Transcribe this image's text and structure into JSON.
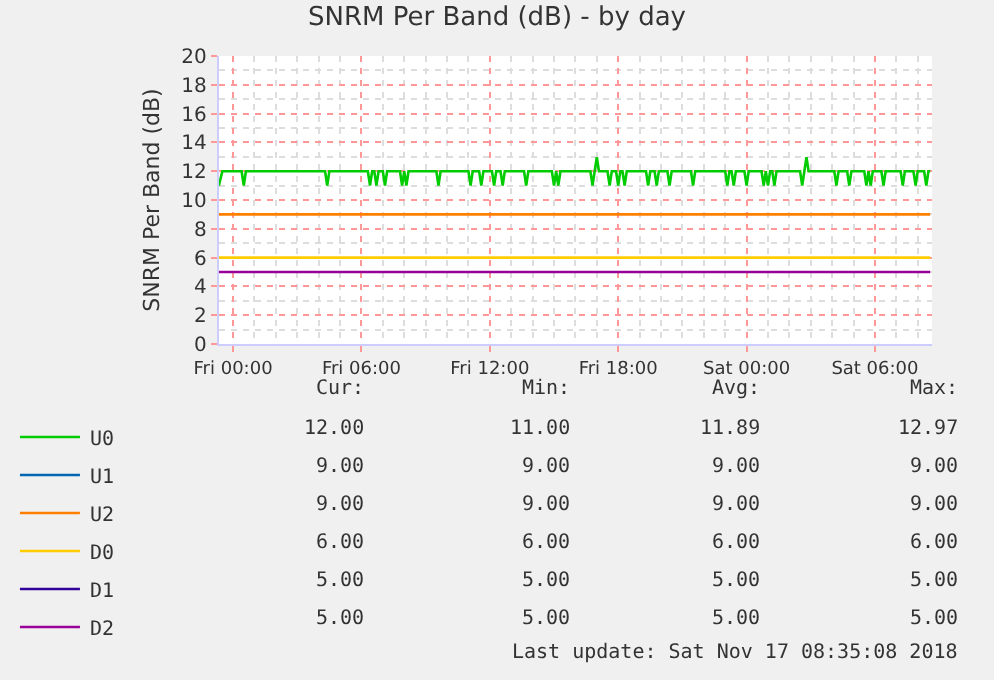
{
  "chart_data": {
    "type": "line",
    "title": "SNRM Per Band (dB) - by day",
    "ylabel": "SNRM Per Band (dB)",
    "xlim": [
      "2018-11-15T23:20",
      "2018-11-17T08:40"
    ],
    "ylim": [
      0,
      20
    ],
    "xticks": [
      {
        "value": "2018-11-16T00:00",
        "label": "Fri 00:00"
      },
      {
        "value": "2018-11-16T06:00",
        "label": "Fri 06:00"
      },
      {
        "value": "2018-11-16T12:00",
        "label": "Fri 12:00"
      },
      {
        "value": "2018-11-16T18:00",
        "label": "Fri 18:00"
      },
      {
        "value": "2018-11-17T00:00",
        "label": "Sat 00:00"
      },
      {
        "value": "2018-11-17T06:00",
        "label": "Sat 06:00"
      }
    ],
    "yticks": [
      0,
      2,
      4,
      6,
      8,
      10,
      12,
      14,
      16,
      18,
      20
    ],
    "grid": true,
    "legend": "bottom left",
    "marker": "none",
    "line_style": "solid",
    "series": [
      {
        "name": "U0",
        "color": "#00cc00",
        "x": [
          "2018-11-15T23:20",
          "2018-11-15T23:30",
          "2018-11-16T00:24",
          "2018-11-16T00:30",
          "2018-11-16T00:36",
          "2018-11-16T04:18",
          "2018-11-16T04:24",
          "2018-11-16T04:30",
          "2018-11-16T06:18",
          "2018-11-16T06:24",
          "2018-11-16T06:30",
          "2018-11-16T06:36",
          "2018-11-16T06:42",
          "2018-11-16T06:48",
          "2018-11-16T07:00",
          "2018-11-16T07:06",
          "2018-11-16T07:12",
          "2018-11-16T07:48",
          "2018-11-16T07:54",
          "2018-11-16T08:00",
          "2018-11-16T08:06",
          "2018-11-16T08:12",
          "2018-11-16T09:30",
          "2018-11-16T09:36",
          "2018-11-16T09:42",
          "2018-11-16T11:00",
          "2018-11-16T11:06",
          "2018-11-16T11:12",
          "2018-11-16T11:30",
          "2018-11-16T11:36",
          "2018-11-16T11:42",
          "2018-11-16T12:06",
          "2018-11-16T12:12",
          "2018-11-16T12:18",
          "2018-11-16T12:30",
          "2018-11-16T12:36",
          "2018-11-16T12:42",
          "2018-11-16T13:36",
          "2018-11-16T13:42",
          "2018-11-16T13:48",
          "2018-11-16T14:54",
          "2018-11-16T15:00",
          "2018-11-16T15:06",
          "2018-11-16T15:12",
          "2018-11-16T15:18",
          "2018-11-16T16:42",
          "2018-11-16T16:48",
          "2018-11-16T16:54",
          "2018-11-16T17:00",
          "2018-11-16T17:06",
          "2018-11-16T17:30",
          "2018-11-16T17:36",
          "2018-11-16T17:42",
          "2018-11-16T17:54",
          "2018-11-16T18:00",
          "2018-11-16T18:06",
          "2018-11-16T18:12",
          "2018-11-16T18:18",
          "2018-11-16T18:24",
          "2018-11-16T19:18",
          "2018-11-16T19:24",
          "2018-11-16T19:30",
          "2018-11-16T19:42",
          "2018-11-16T19:48",
          "2018-11-16T19:54",
          "2018-11-16T20:18",
          "2018-11-16T20:24",
          "2018-11-16T20:30",
          "2018-11-16T21:24",
          "2018-11-16T21:30",
          "2018-11-16T21:36",
          "2018-11-16T23:00",
          "2018-11-16T23:06",
          "2018-11-16T23:12",
          "2018-11-16T23:18",
          "2018-11-16T23:24",
          "2018-11-16T23:30",
          "2018-11-16T23:54",
          "2018-11-17T00:00",
          "2018-11-17T00:06",
          "2018-11-17T00:42",
          "2018-11-17T00:48",
          "2018-11-17T00:54",
          "2018-11-17T01:00",
          "2018-11-17T01:06",
          "2018-11-17T01:12",
          "2018-11-17T01:18",
          "2018-11-17T01:24",
          "2018-11-17T02:30",
          "2018-11-17T02:36",
          "2018-11-17T02:42",
          "2018-11-17T02:48",
          "2018-11-17T02:54",
          "2018-11-17T04:06",
          "2018-11-17T04:12",
          "2018-11-17T04:18",
          "2018-11-17T04:42",
          "2018-11-17T04:48",
          "2018-11-17T04:54",
          "2018-11-17T05:30",
          "2018-11-17T05:36",
          "2018-11-17T05:42",
          "2018-11-17T05:48",
          "2018-11-17T05:54",
          "2018-11-17T06:18",
          "2018-11-17T06:24",
          "2018-11-17T06:30",
          "2018-11-17T07:12",
          "2018-11-17T07:18",
          "2018-11-17T07:24",
          "2018-11-17T07:48",
          "2018-11-17T07:54",
          "2018-11-17T08:00",
          "2018-11-17T08:18",
          "2018-11-17T08:24",
          "2018-11-17T08:30",
          "2018-11-17T08:35"
        ],
        "values": [
          11,
          12,
          12,
          11,
          12,
          12,
          11,
          12,
          12,
          11,
          12,
          12,
          11,
          12,
          12,
          11,
          12,
          12,
          11,
          12,
          11,
          12,
          12,
          11,
          12,
          12,
          11,
          12,
          12,
          11,
          12,
          12,
          11,
          12,
          12,
          11,
          12,
          12,
          11,
          12,
          12,
          11,
          12,
          11,
          12,
          12,
          11,
          12,
          12.97,
          12,
          12,
          11,
          12,
          12,
          11,
          12,
          12,
          11,
          12,
          12,
          11,
          12,
          12,
          11,
          12,
          12,
          11,
          12,
          12,
          11,
          12,
          12,
          11,
          12,
          12,
          11,
          12,
          12,
          11,
          12,
          12,
          11,
          12,
          11,
          12,
          12,
          11,
          12,
          12,
          11,
          12,
          12.97,
          12,
          12,
          11,
          12,
          12,
          11,
          12,
          12,
          11,
          12,
          11,
          12,
          12,
          11,
          12,
          12,
          11,
          12,
          12,
          11,
          12,
          12,
          11,
          12,
          12
        ]
      },
      {
        "name": "U1",
        "color": "#0066b3"
      },
      {
        "name": "U2",
        "color": "#ff8000",
        "x": [
          "2018-11-15T23:20",
          "2018-11-17T08:35"
        ],
        "values": [
          9,
          9
        ]
      },
      {
        "name": "D0",
        "color": "#ffcc00",
        "x": [
          "2018-11-15T23:20",
          "2018-11-17T08:35"
        ],
        "values": [
          6,
          6
        ]
      },
      {
        "name": "D1",
        "color": "#330099"
      },
      {
        "name": "D2",
        "color": "#990099",
        "x": [
          "2018-11-15T23:20",
          "2018-11-17T08:35"
        ],
        "values": [
          5,
          5
        ]
      }
    ],
    "annotations": [
      "Cur:",
      "Min:",
      "Avg:",
      "Max:",
      "12.00",
      "11.00",
      "11.89",
      "12.97",
      "9.00",
      "9.00",
      "9.00",
      "9.00",
      "9.00",
      "9.00",
      "9.00",
      "9.00",
      "6.00",
      "6.00",
      "6.00",
      "6.00",
      "5.00",
      "5.00",
      "5.00",
      "5.00",
      "5.00",
      "5.00",
      "5.00",
      "5.00",
      "Last update: Sat Nov 17 08:35:08 2018"
    ]
  }
}
